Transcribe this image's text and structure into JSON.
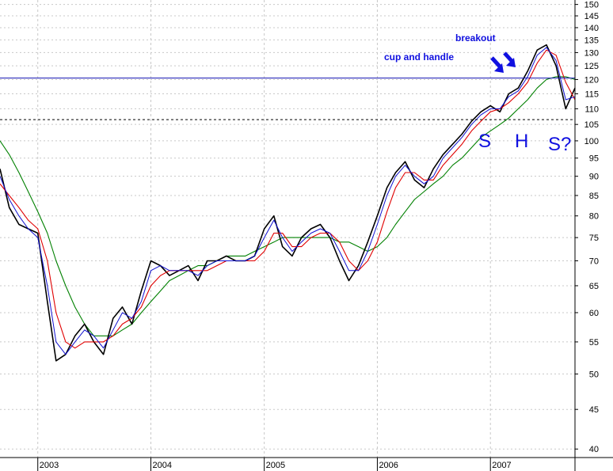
{
  "chart_data": {
    "type": "line",
    "title": "",
    "xlabel": "",
    "ylabel": "",
    "y_scale": "log",
    "ylim": [
      39,
      152
    ],
    "x_range": [
      "2002-09-01",
      "2007-10-01"
    ],
    "grid": true,
    "y_ticks": [
      150,
      145,
      140,
      135,
      130,
      125,
      120,
      115,
      110,
      105,
      100,
      95,
      90,
      85,
      80,
      75,
      70,
      65,
      60,
      55,
      50,
      45,
      40
    ],
    "x_ticks": [
      {
        "date": "2003-01-01",
        "label": "2003"
      },
      {
        "date": "2004-01-01",
        "label": "2004"
      },
      {
        "date": "2005-01-01",
        "label": "2005"
      },
      {
        "date": "2006-01-01",
        "label": "2006"
      },
      {
        "date": "2007-01-01",
        "label": "2007"
      }
    ],
    "colors": {
      "price": "#000000",
      "ma_short": "#1010d0",
      "ma_medium": "#e00000",
      "ma_long": "#008000",
      "horizontal_line": "#1010b0",
      "dashed_line": "#000000",
      "annotation": "#1010e0",
      "grid": "#c8c8c8"
    },
    "series": [
      {
        "key": "price",
        "x": [
          "2002-09-01",
          "2002-10-01",
          "2002-11-01",
          "2002-12-01",
          "2003-01-01",
          "2003-02-01",
          "2003-03-01",
          "2003-04-01",
          "2003-05-01",
          "2003-06-01",
          "2003-07-01",
          "2003-08-01",
          "2003-09-01",
          "2003-10-01",
          "2003-11-01",
          "2003-12-01",
          "2004-01-01",
          "2004-02-01",
          "2004-03-01",
          "2004-04-01",
          "2004-05-01",
          "2004-06-01",
          "2004-07-01",
          "2004-08-01",
          "2004-09-01",
          "2004-10-01",
          "2004-11-01",
          "2004-12-01",
          "2005-01-01",
          "2005-02-01",
          "2005-03-01",
          "2005-04-01",
          "2005-05-01",
          "2005-06-01",
          "2005-07-01",
          "2005-08-01",
          "2005-09-01",
          "2005-10-01",
          "2005-11-01",
          "2005-12-01",
          "2006-01-01",
          "2006-02-01",
          "2006-03-01",
          "2006-04-01",
          "2006-05-01",
          "2006-06-01",
          "2006-07-01",
          "2006-08-01",
          "2006-09-01",
          "2006-10-01",
          "2006-11-01",
          "2006-12-01",
          "2007-01-01",
          "2007-02-01",
          "2007-03-01",
          "2007-04-01",
          "2007-05-01",
          "2007-06-01",
          "2007-07-01",
          "2007-08-01",
          "2007-09-01",
          "2007-10-01"
        ],
        "y": [
          92,
          82,
          78,
          77,
          76,
          62,
          52,
          53,
          56,
          58,
          55,
          53,
          59,
          61,
          58,
          64,
          70,
          69,
          67,
          68,
          69,
          66,
          70,
          70,
          71,
          70,
          70,
          71,
          77,
          80,
          73,
          71,
          75,
          77,
          78,
          75,
          70,
          66,
          69,
          74,
          80,
          87,
          91,
          94,
          89,
          87,
          92,
          96,
          99,
          102,
          106,
          109,
          111,
          109,
          115,
          117,
          123,
          131,
          133,
          125,
          110,
          117
        ]
      },
      {
        "key": "ma_short",
        "x": [
          "2002-09-01",
          "2002-10-01",
          "2002-11-01",
          "2002-12-01",
          "2003-01-01",
          "2003-02-01",
          "2003-03-01",
          "2003-04-01",
          "2003-05-01",
          "2003-06-01",
          "2003-07-01",
          "2003-08-01",
          "2003-09-01",
          "2003-10-01",
          "2003-11-01",
          "2003-12-01",
          "2004-01-01",
          "2004-02-01",
          "2004-03-01",
          "2004-04-01",
          "2004-05-01",
          "2004-06-01",
          "2004-07-01",
          "2004-08-01",
          "2004-09-01",
          "2004-10-01",
          "2004-11-01",
          "2004-12-01",
          "2005-01-01",
          "2005-02-01",
          "2005-03-01",
          "2005-04-01",
          "2005-05-01",
          "2005-06-01",
          "2005-07-01",
          "2005-08-01",
          "2005-09-01",
          "2005-10-01",
          "2005-11-01",
          "2005-12-01",
          "2006-01-01",
          "2006-02-01",
          "2006-03-01",
          "2006-04-01",
          "2006-05-01",
          "2006-06-01",
          "2006-07-01",
          "2006-08-01",
          "2006-09-01",
          "2006-10-01",
          "2006-11-01",
          "2006-12-01",
          "2007-01-01",
          "2007-02-01",
          "2007-03-01",
          "2007-04-01",
          "2007-05-01",
          "2007-06-01",
          "2007-07-01",
          "2007-08-01",
          "2007-09-01",
          "2007-10-01"
        ],
        "y": [
          90,
          84,
          80,
          77,
          75,
          65,
          55,
          53,
          55,
          57,
          56,
          54,
          57,
          60,
          59,
          62,
          68,
          69,
          68,
          68,
          68,
          67,
          69,
          70,
          70,
          70,
          70,
          71,
          75,
          79,
          75,
          72,
          74,
          76,
          77,
          76,
          72,
          68,
          68,
          72,
          78,
          85,
          90,
          93,
          90,
          88,
          90,
          95,
          98,
          101,
          105,
          108,
          110,
          110,
          114,
          116,
          121,
          129,
          132,
          127,
          113,
          114
        ]
      },
      {
        "key": "ma_medium",
        "x": [
          "2002-09-01",
          "2002-10-01",
          "2002-11-01",
          "2002-12-01",
          "2003-01-01",
          "2003-02-01",
          "2003-03-01",
          "2003-04-01",
          "2003-05-01",
          "2003-06-01",
          "2003-07-01",
          "2003-08-01",
          "2003-09-01",
          "2003-10-01",
          "2003-11-01",
          "2003-12-01",
          "2004-01-01",
          "2004-02-01",
          "2004-03-01",
          "2004-04-01",
          "2004-05-01",
          "2004-06-01",
          "2004-07-01",
          "2004-08-01",
          "2004-09-01",
          "2004-10-01",
          "2004-11-01",
          "2004-12-01",
          "2005-01-01",
          "2005-02-01",
          "2005-03-01",
          "2005-04-01",
          "2005-05-01",
          "2005-06-01",
          "2005-07-01",
          "2005-08-01",
          "2005-09-01",
          "2005-10-01",
          "2005-11-01",
          "2005-12-01",
          "2006-01-01",
          "2006-02-01",
          "2006-03-01",
          "2006-04-01",
          "2006-05-01",
          "2006-06-01",
          "2006-07-01",
          "2006-08-01",
          "2006-09-01",
          "2006-10-01",
          "2006-11-01",
          "2006-12-01",
          "2007-01-01",
          "2007-02-01",
          "2007-03-01",
          "2007-04-01",
          "2007-05-01",
          "2007-06-01",
          "2007-07-01",
          "2007-08-01",
          "2007-09-01",
          "2007-10-01"
        ],
        "y": [
          88,
          85,
          82,
          79,
          77,
          70,
          60,
          55,
          54,
          55,
          55,
          55,
          56,
          58,
          59,
          61,
          65,
          67,
          68,
          68,
          68,
          68,
          68,
          69,
          70,
          70,
          70,
          70,
          72,
          76,
          76,
          73,
          73,
          75,
          76,
          76,
          74,
          70,
          68,
          70,
          74,
          81,
          87,
          91,
          91,
          89,
          89,
          93,
          96,
          99,
          103,
          106,
          109,
          110,
          112,
          115,
          119,
          126,
          131,
          129,
          119,
          113
        ]
      },
      {
        "key": "ma_long",
        "x": [
          "2002-09-01",
          "2002-10-01",
          "2002-11-01",
          "2002-12-01",
          "2003-01-01",
          "2003-02-01",
          "2003-03-01",
          "2003-04-01",
          "2003-05-01",
          "2003-06-01",
          "2003-07-01",
          "2003-08-01",
          "2003-09-01",
          "2003-10-01",
          "2003-11-01",
          "2003-12-01",
          "2004-01-01",
          "2004-02-01",
          "2004-03-01",
          "2004-04-01",
          "2004-05-01",
          "2004-06-01",
          "2004-07-01",
          "2004-08-01",
          "2004-09-01",
          "2004-10-01",
          "2004-11-01",
          "2004-12-01",
          "2005-01-01",
          "2005-02-01",
          "2005-03-01",
          "2005-04-01",
          "2005-05-01",
          "2005-06-01",
          "2005-07-01",
          "2005-08-01",
          "2005-09-01",
          "2005-10-01",
          "2005-11-01",
          "2005-12-01",
          "2006-01-01",
          "2006-02-01",
          "2006-03-01",
          "2006-04-01",
          "2006-05-01",
          "2006-06-01",
          "2006-07-01",
          "2006-08-01",
          "2006-09-01",
          "2006-10-01",
          "2006-11-01",
          "2006-12-01",
          "2007-01-01",
          "2007-02-01",
          "2007-03-01",
          "2007-04-01",
          "2007-05-01",
          "2007-06-01",
          "2007-07-01",
          "2007-08-01",
          "2007-09-01",
          "2007-10-01"
        ],
        "y": [
          100,
          96,
          91,
          86,
          81,
          76,
          70,
          65,
          61,
          58,
          56,
          56,
          56,
          57,
          58,
          60,
          62,
          64,
          66,
          67,
          68,
          69,
          69,
          70,
          71,
          71,
          71,
          72,
          73,
          74,
          75,
          75,
          75,
          75,
          75,
          75,
          74,
          74,
          73,
          72,
          73,
          75,
          78,
          81,
          84,
          86,
          88,
          90,
          93,
          95,
          98,
          101,
          103,
          105,
          107,
          110,
          113,
          117,
          120,
          121,
          121,
          120
        ]
      }
    ],
    "horizontal_lines": [
      {
        "key": "resistance",
        "y": 120.5,
        "style": "solid"
      },
      {
        "key": "neckline",
        "y": 106.5,
        "style": "dashed"
      }
    ],
    "annotations": {
      "cup": {
        "text": "cup and handle",
        "x": "2006-11-20",
        "y": 128
      },
      "breakout": {
        "text": "breakout",
        "x": "2007-01-05",
        "y": 139
      },
      "s_left": {
        "text": "S",
        "x": "2006-12-10",
        "y": 101.5
      },
      "h_mid": {
        "text": "H",
        "x": "2007-03-10",
        "y": 101.5
      },
      "s_right": {
        "text": "S?",
        "x": "2007-06-20",
        "y": 101
      },
      "arrows": [
        {
          "key": "arrow-1",
          "x": "2007-01-12",
          "y": 122
        },
        {
          "key": "arrow-2",
          "x": "2007-02-18",
          "y": 124
        }
      ]
    }
  }
}
